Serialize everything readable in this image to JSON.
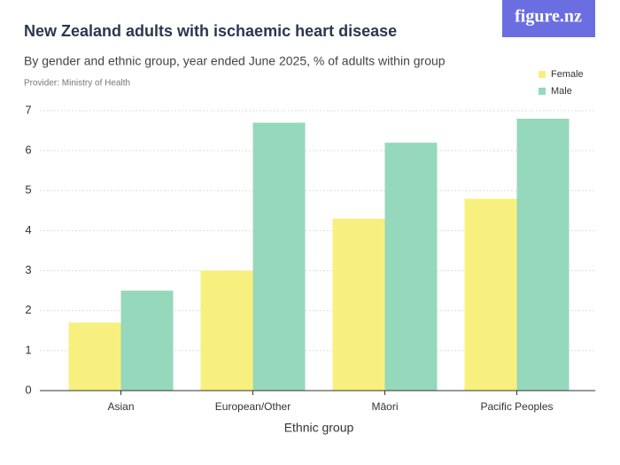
{
  "logo": "figure.nz",
  "chart_data": {
    "type": "bar",
    "title": "New Zealand adults with ischaemic heart disease",
    "subtitle": "By gender and ethnic group, year ended June 2025, % of adults within group",
    "provider": "Provider: Ministry of Health",
    "x_label": "Ethnic group",
    "categories": [
      "Asian",
      "European/Other",
      "Māori",
      "Pacific Peoples"
    ],
    "series": [
      {
        "name": "Female",
        "color": "#f8f07e",
        "values": [
          1.7,
          3.0,
          4.3,
          4.8
        ]
      },
      {
        "name": "Male",
        "color": "#96d8bb",
        "values": [
          2.5,
          6.7,
          6.2,
          6.8
        ]
      }
    ],
    "ylim": [
      0,
      7
    ],
    "yticks": [
      0,
      1,
      2,
      3,
      4,
      5,
      6,
      7
    ],
    "grid": true,
    "legend": "top-right"
  }
}
